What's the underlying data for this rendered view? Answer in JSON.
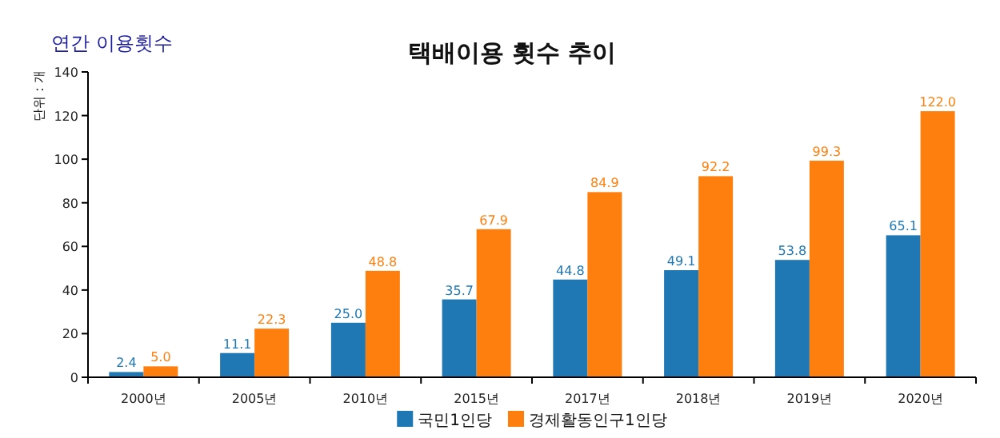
{
  "chart_data": {
    "type": "bar",
    "title": "택배이용 횟수 추이",
    "subtitle": "연간 이용횟수",
    "ylabel": "단위 : 개",
    "categories": [
      "2000년",
      "2005년",
      "2010년",
      "2015년",
      "2017년",
      "2018년",
      "2019년",
      "2020년"
    ],
    "series": [
      {
        "name": "국민1인당",
        "color": "#1f77b4",
        "values": [
          2.4,
          11.1,
          25.0,
          35.7,
          44.8,
          49.1,
          53.8,
          65.1
        ],
        "value_labels": [
          "2.4",
          "11.1",
          "25.0",
          "35.7",
          "44.8",
          "49.1",
          "53.8",
          "65.1"
        ]
      },
      {
        "name": "경제활동인구1인당",
        "color": "#ff7f0e",
        "values": [
          5.0,
          22.3,
          48.8,
          67.9,
          84.9,
          92.2,
          99.3,
          122.0
        ],
        "value_labels": [
          "5.0",
          "22.3",
          "48.8",
          "67.9",
          "84.9",
          "92.2",
          "99.3",
          "122.0"
        ]
      }
    ],
    "ylim": [
      0,
      140
    ],
    "yticks": [
      0,
      20,
      40,
      60,
      80,
      100,
      120,
      140
    ],
    "legend": "bottom",
    "grid": false
  }
}
